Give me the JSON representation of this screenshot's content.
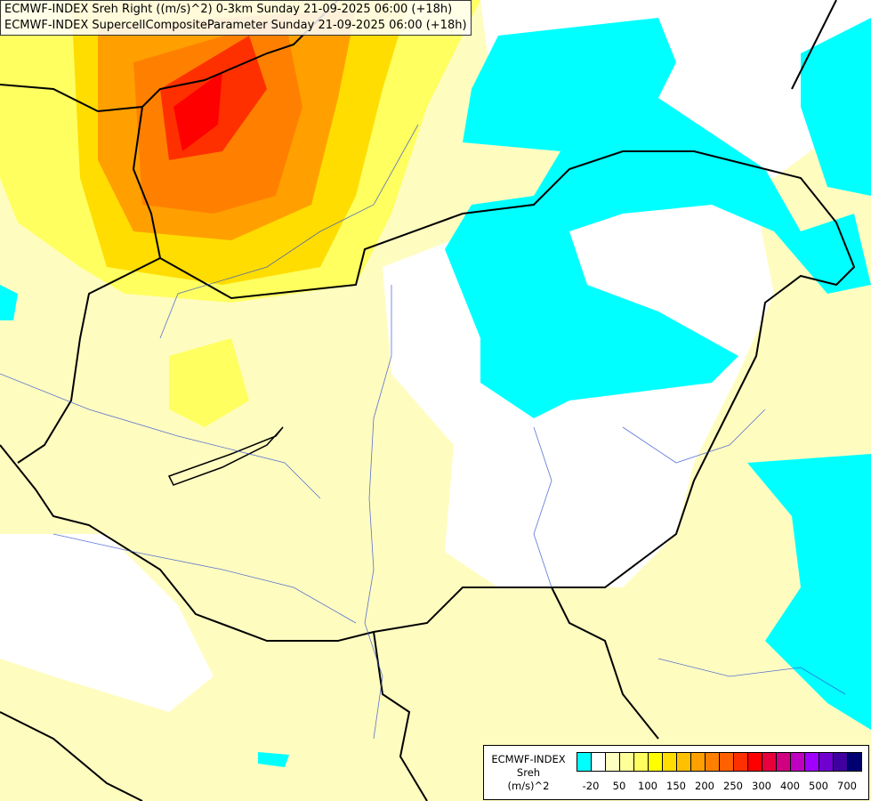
{
  "titles": [
    "ECMWF-INDEX Sreh Right ((m/s)^2) 0-3km Sunday 21-09-2025 06:00 (+18h)",
    "ECMWF-INDEX SupercellCompositeParameter Sunday 21-09-2025 06:00 (+18h)"
  ],
  "legend": {
    "model": "ECMWF-INDEX",
    "parameter": "Sreh",
    "unit": "(m/s)^2",
    "colors": [
      "#00ffff",
      "#ffffff",
      "#ffffc0",
      "#ffff99",
      "#ffff60",
      "#ffff00",
      "#ffdd00",
      "#ffc000",
      "#ffa000",
      "#ff8000",
      "#ff6000",
      "#ff3000",
      "#ff0000",
      "#e8003c",
      "#d00080",
      "#c000c0",
      "#a000ff",
      "#7000d0",
      "#4000a0",
      "#000070"
    ],
    "tick_labels": [
      "-20",
      "50",
      "100",
      "150",
      "200",
      "250",
      "300",
      "400",
      "500",
      "700"
    ]
  }
}
